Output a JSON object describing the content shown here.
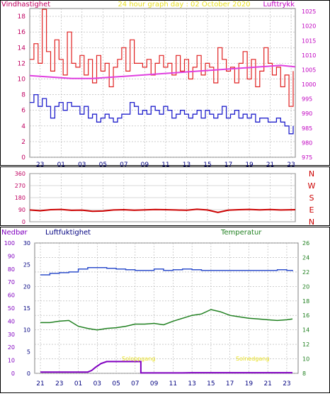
{
  "colors": {
    "wind": "#e02020",
    "gust": "#e05050",
    "wind_avg": "#2020cc",
    "pressure": "#e040e0",
    "direction": "#cc0000",
    "humidity": "#3050cc",
    "temperature": "#208020",
    "rain": "#8000c0",
    "title": "#e8e020",
    "axis_left": "#c00060",
    "axis_right": "#c000c0",
    "dir_labels": "#cc0000",
    "grid": "#b0b0b0"
  },
  "top_panel": {
    "title": "24 hour graph day : 02 October 2020",
    "left_label": "Vindhastighet",
    "right_label": "Lufttrykk"
  },
  "mid_panel": {
    "dir_letters": [
      "N",
      "W",
      "S",
      "E",
      "N"
    ]
  },
  "bottom_panel": {
    "label_rain": "Nedbør",
    "label_humidity": "Luftfuktighet",
    "label_temp": "Temperatur",
    "sun_rise": "Soloppgang",
    "sun_set": "Solnedgang"
  },
  "chart_data": [
    {
      "type": "line",
      "title": "24 hour graph day : 02 October 2020",
      "xlabel": "",
      "ylabel": "Vindhastighet",
      "y2label": "Lufttrykk",
      "x_ticks": [
        "23",
        "01",
        "03",
        "05",
        "07",
        "09",
        "11",
        "13",
        "15",
        "17",
        "19",
        "21",
        "23"
      ],
      "ylim": [
        0,
        19
      ],
      "y_ticks": [
        0,
        2,
        4,
        6,
        8,
        10,
        12,
        14,
        16,
        18
      ],
      "y2lim": [
        975,
        1026
      ],
      "y2_ticks": [
        975,
        980,
        985,
        990,
        995,
        1000,
        1005,
        1010,
        1015,
        1020,
        1025
      ],
      "x_range": [
        22,
        47.4
      ],
      "grid": true,
      "series": [
        {
          "axis": "left",
          "x": [
            22.0,
            22.4,
            22.8,
            23.2,
            23.6,
            24.0,
            24.4,
            24.8,
            25.2,
            25.6,
            26.0,
            26.4,
            26.8,
            27.2,
            27.6,
            28.0,
            28.4,
            28.8,
            29.2,
            29.6,
            30.0,
            30.4,
            30.8,
            31.2,
            31.6,
            32.0,
            32.4,
            32.8,
            33.2,
            33.6,
            34.0,
            34.4,
            34.8,
            35.2,
            35.6,
            36.0,
            36.4,
            36.8,
            37.2,
            37.6,
            38.0,
            38.4,
            38.8,
            39.2,
            39.6,
            40.0,
            40.4,
            40.8,
            41.2,
            41.6,
            42.0,
            42.4,
            42.8,
            43.2,
            43.6,
            44.0,
            44.4,
            44.8,
            45.2,
            45.6,
            46.0,
            46.4,
            46.8,
            47.2
          ],
          "values": [
            12.5,
            14.5,
            12.0,
            18.9,
            13.5,
            11.0,
            15.0,
            12.5,
            10.5,
            16.0,
            12.0,
            11.5,
            13.0,
            10.5,
            12.5,
            9.5,
            13.0,
            11.0,
            12.0,
            9.0,
            11.5,
            12.5,
            14.0,
            11.0,
            15.0,
            12.0,
            12.0,
            11.5,
            12.5,
            10.5,
            12.0,
            13.0,
            11.5,
            12.0,
            10.5,
            13.0,
            11.0,
            12.5,
            10.0,
            11.5,
            13.0,
            10.5,
            12.0,
            11.5,
            9.5,
            14.0,
            12.5,
            11.0,
            11.5,
            9.5,
            12.0,
            13.5,
            10.0,
            12.5,
            9.0,
            11.0,
            14.0,
            12.0,
            10.5,
            11.5,
            9.0,
            10.5,
            6.5,
            11.0
          ]
        },
        {
          "axis": "left",
          "x": [
            22.0,
            22.4,
            22.8,
            23.2,
            23.6,
            24.0,
            24.4,
            24.8,
            25.2,
            25.6,
            26.0,
            26.4,
            26.8,
            27.2,
            27.6,
            28.0,
            28.4,
            28.8,
            29.2,
            29.6,
            30.0,
            30.4,
            30.8,
            31.2,
            31.6,
            32.0,
            32.4,
            32.8,
            33.2,
            33.6,
            34.0,
            34.4,
            34.8,
            35.2,
            35.6,
            36.0,
            36.4,
            36.8,
            37.2,
            37.6,
            38.0,
            38.4,
            38.8,
            39.2,
            39.6,
            40.0,
            40.4,
            40.8,
            41.2,
            41.6,
            42.0,
            42.4,
            42.8,
            43.2,
            43.6,
            44.0,
            44.4,
            44.8,
            45.2,
            45.6,
            46.0,
            46.4,
            46.8,
            47.2
          ],
          "values": [
            7.0,
            8.0,
            6.5,
            7.5,
            6.5,
            5.0,
            6.5,
            7.0,
            6.0,
            7.0,
            6.5,
            6.5,
            5.5,
            6.5,
            5.0,
            5.5,
            4.5,
            5.0,
            5.5,
            5.0,
            4.5,
            5.0,
            5.5,
            5.5,
            7.0,
            6.5,
            5.5,
            6.0,
            5.5,
            6.5,
            6.0,
            5.5,
            6.5,
            6.0,
            5.0,
            5.5,
            6.0,
            5.5,
            5.0,
            5.5,
            6.0,
            5.0,
            6.0,
            5.5,
            5.0,
            5.5,
            6.5,
            5.0,
            5.5,
            6.0,
            5.0,
            5.5,
            5.0,
            5.5,
            4.5,
            5.0,
            5.0,
            4.5,
            4.5,
            5.0,
            4.5,
            4.0,
            3.0,
            4.0
          ]
        },
        {
          "axis": "right",
          "x": [
            22,
            24,
            26,
            28,
            30,
            32,
            34,
            36,
            38,
            40,
            42,
            44,
            46,
            47.4
          ],
          "values": [
            1003,
            1002.5,
            1002,
            1002,
            1002.5,
            1003,
            1003.5,
            1004,
            1004.5,
            1005,
            1005.5,
            1006,
            1006.5,
            1006
          ]
        }
      ]
    },
    {
      "type": "line",
      "ylabel": "",
      "ylim": [
        0,
        360
      ],
      "y_ticks": [
        0,
        90,
        180,
        270,
        360
      ],
      "x_range": [
        22,
        47.4
      ],
      "grid": true,
      "series": [
        {
          "x": [
            22,
            23,
            24,
            25,
            26,
            27,
            28,
            29,
            30,
            31,
            32,
            33,
            34,
            35,
            36,
            37,
            38,
            39,
            40,
            41,
            42,
            43,
            44,
            45,
            46,
            47.4
          ],
          "values": [
            88,
            82,
            90,
            92,
            85,
            87,
            78,
            80,
            88,
            90,
            86,
            89,
            91,
            90,
            88,
            86,
            93,
            88,
            70,
            87,
            90,
            92,
            89,
            91,
            88,
            90
          ]
        }
      ]
    },
    {
      "type": "line",
      "xlabel": "",
      "x_ticks": [
        "21",
        "23",
        "01",
        "03",
        "05",
        "07",
        "09",
        "11",
        "13",
        "15",
        "17",
        "19",
        "21",
        "23"
      ],
      "x_range": [
        20.4,
        48.2
      ],
      "grid": true,
      "axes": {
        "rain": {
          "label": "Nedbør",
          "ylim": [
            0,
            100
          ],
          "ticks": [
            0,
            10,
            20,
            30,
            40,
            50,
            60,
            70,
            80,
            90,
            100
          ]
        },
        "humidity": {
          "label": "Luftfuktighet",
          "ylim": [
            0,
            30
          ],
          "ticks": [
            0,
            5,
            10,
            15,
            20,
            25,
            30
          ]
        },
        "temperature": {
          "label": "Temperatur",
          "ylim": [
            8,
            26
          ],
          "ticks": [
            8,
            10,
            12,
            14,
            16,
            18,
            20,
            22,
            24,
            26
          ]
        }
      },
      "series": [
        {
          "axis": "rain",
          "x": [
            21,
            22,
            23,
            24,
            25,
            26,
            26.4,
            26.8,
            27.4,
            28,
            29,
            30,
            31,
            31.6,
            31.6,
            32,
            33,
            34,
            35,
            36,
            37,
            38,
            39,
            40,
            41,
            42,
            43,
            44,
            45,
            46,
            47,
            47.6
          ],
          "values": [
            1.0,
            1.0,
            1.0,
            1.0,
            1.0,
            1.0,
            2.2,
            4.5,
            7.5,
            9.0,
            9.0,
            9.0,
            9.0,
            9.0,
            0.3,
            0.3,
            0.3,
            0.3,
            0.3,
            0.3,
            0.5,
            0.5,
            0.5,
            0.5,
            0.5,
            0.5,
            0.5,
            0.5,
            0.5,
            0.5,
            0.5,
            0.5
          ]
        },
        {
          "axis": "temperature",
          "x": [
            21,
            22,
            23,
            24,
            25,
            26,
            27,
            28,
            29,
            30,
            31,
            32,
            33,
            34,
            35,
            36,
            37,
            38,
            39,
            40,
            41,
            42,
            43,
            44,
            45,
            46,
            47,
            47.6
          ],
          "values": [
            15.0,
            15.0,
            15.2,
            15.3,
            14.5,
            14.2,
            14.0,
            14.2,
            14.3,
            14.5,
            14.8,
            14.8,
            14.9,
            14.7,
            15.2,
            15.6,
            16.0,
            16.2,
            16.8,
            16.5,
            16.0,
            15.8,
            15.6,
            15.5,
            15.4,
            15.3,
            15.4,
            15.5
          ]
        },
        {
          "axis": "temperature",
          "x": [
            21,
            22,
            23,
            24,
            25,
            26,
            27,
            28,
            29,
            30,
            31,
            32,
            33,
            34,
            35,
            36,
            37,
            38,
            39,
            40,
            41,
            42,
            43,
            44,
            45,
            46,
            47,
            47.6
          ],
          "values": [
            21.6,
            21.8,
            21.9,
            22.0,
            22.4,
            22.6,
            22.6,
            22.5,
            22.4,
            22.3,
            22.2,
            22.2,
            22.4,
            22.2,
            22.3,
            22.4,
            22.3,
            22.2,
            22.2,
            22.2,
            22.2,
            22.2,
            22.2,
            22.2,
            22.2,
            22.3,
            22.2,
            22.1
          ]
        }
      ]
    }
  ]
}
